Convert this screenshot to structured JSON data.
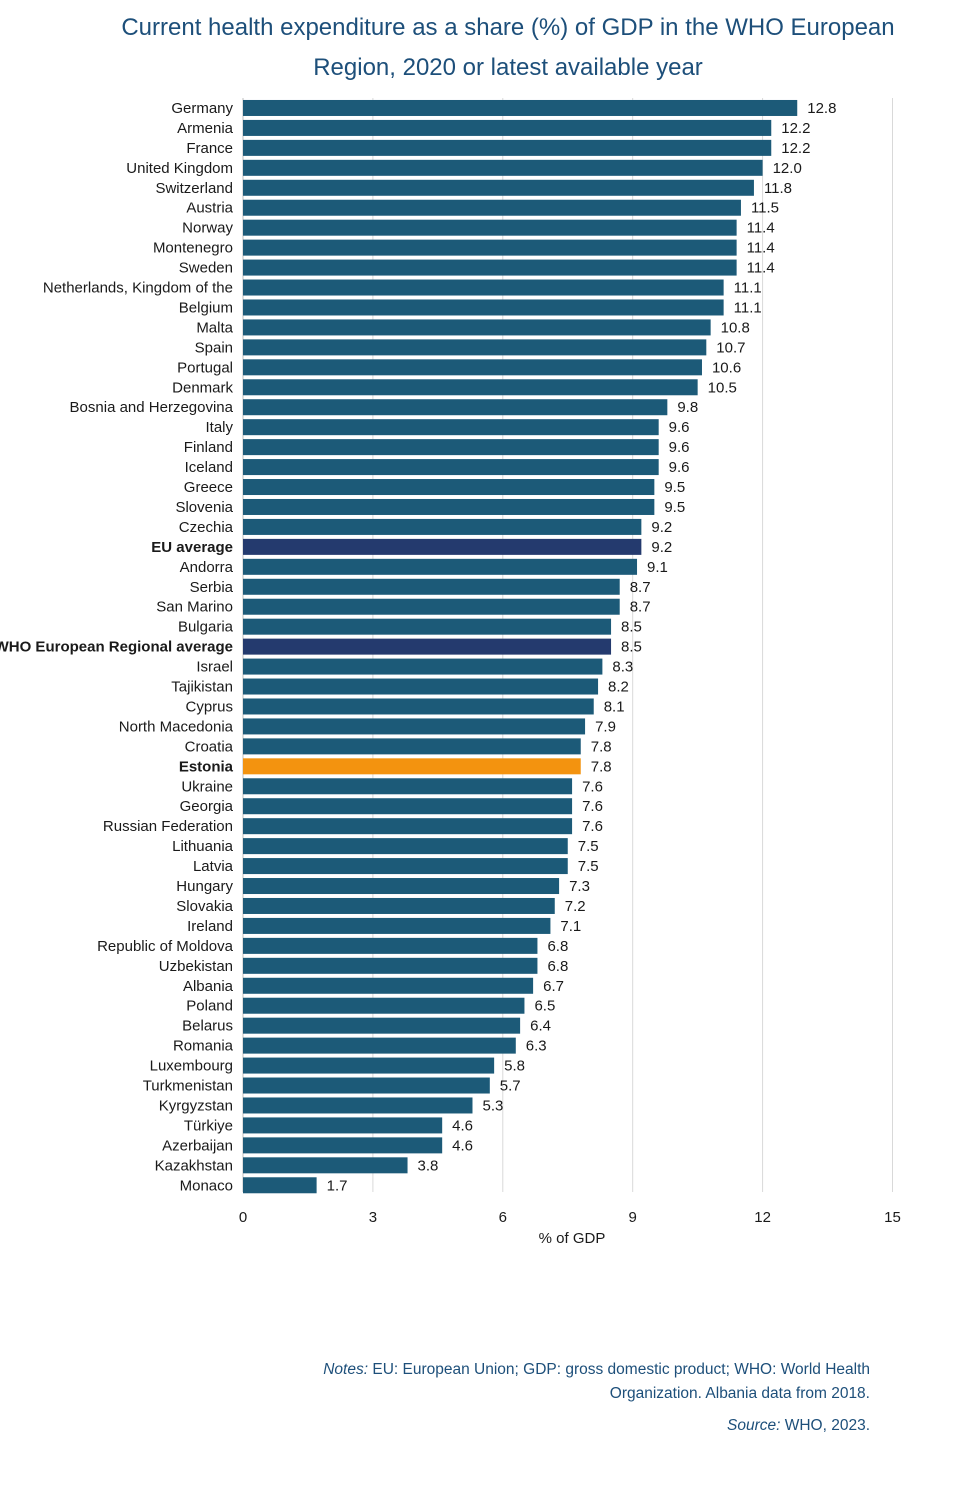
{
  "title_line1": "Current health expenditure as a share (%) of GDP in the WHO European",
  "title_line2": "Region, 2020 or latest available year",
  "notes_label": "Notes:",
  "notes_text": "EU: European Union; GDP: gross domestic product; WHO: World Health Organization. Albania data from 2018.",
  "source_label": "Source:",
  "source_text": "WHO, 2023.",
  "colors": {
    "bar": "#1c5a78",
    "average": "#243a6e",
    "highlight": "#f3930f",
    "grid": "#d9d9d9"
  },
  "chart_data": {
    "type": "bar",
    "orientation": "horizontal",
    "title": "Current health expenditure as a share (%) of GDP in the WHO European Region, 2020 or latest available year",
    "xlabel": "% of GDP",
    "ylabel": "",
    "xlim": [
      0,
      15
    ],
    "xticks": [
      0,
      3,
      6,
      9,
      12,
      15
    ],
    "grid": "vertical",
    "categories": [
      "Germany",
      "Armenia",
      "France",
      "United Kingdom",
      "Switzerland",
      "Austria",
      "Norway",
      "Montenegro",
      "Sweden",
      "Netherlands, Kingdom of the",
      "Belgium",
      "Malta",
      "Spain",
      "Portugal",
      "Denmark",
      "Bosnia and Herzegovina",
      "Italy",
      "Finland",
      "Iceland",
      "Greece",
      "Slovenia",
      "Czechia",
      "EU average",
      "Andorra",
      "Serbia",
      "San Marino",
      "Bulgaria",
      "WHO European Regional average",
      "Israel",
      "Tajikistan",
      "Cyprus",
      "North Macedonia",
      "Croatia",
      "Estonia",
      "Ukraine",
      "Georgia",
      "Russian Federation",
      "Lithuania",
      "Latvia",
      "Hungary",
      "Slovakia",
      "Ireland",
      "Republic of Moldova",
      "Uzbekistan",
      "Albania",
      "Poland",
      "Belarus",
      "Romania",
      "Luxembourg",
      "Turkmenistan",
      "Kyrgyzstan",
      "Türkiye",
      "Azerbaijan",
      "Kazakhstan",
      "Monaco"
    ],
    "values": [
      12.8,
      12.2,
      12.2,
      12.0,
      11.8,
      11.5,
      11.4,
      11.4,
      11.4,
      11.1,
      11.1,
      10.8,
      10.7,
      10.6,
      10.5,
      9.8,
      9.6,
      9.6,
      9.6,
      9.5,
      9.5,
      9.2,
      9.2,
      9.1,
      8.7,
      8.7,
      8.5,
      8.5,
      8.3,
      8.2,
      8.1,
      7.9,
      7.8,
      7.8,
      7.6,
      7.6,
      7.6,
      7.5,
      7.5,
      7.3,
      7.2,
      7.1,
      6.8,
      6.8,
      6.7,
      6.5,
      6.4,
      6.3,
      5.8,
      5.7,
      5.3,
      4.6,
      4.6,
      3.8,
      1.7
    ],
    "labels": [
      "12.8",
      "12.2",
      "12.2",
      "12.0",
      "11.8",
      "11.5",
      "11.4",
      "11.4",
      "11.4",
      "11.1",
      "11.1",
      "10.8",
      "10.7",
      "10.6",
      "10.5",
      "9.8",
      "9.6",
      "9.6",
      "9.6",
      "9.5",
      "9.5",
      "9.2",
      "9.2",
      "9.1",
      "8.7",
      "8.7",
      "8.5",
      "8.5",
      "8.3",
      "8.2",
      "8.1",
      "7.9",
      "7.8",
      "7.8",
      "7.6",
      "7.6",
      "7.6",
      "7.5",
      "7.5",
      "7.3",
      "7.2",
      "7.1",
      "6.8",
      "6.8",
      "6.7",
      "6.5",
      "6.4",
      "6.3",
      "5.8",
      "5.7",
      "5.3",
      "4.6",
      "4.6",
      "3.8",
      "1.7"
    ],
    "average_categories": [
      "EU average",
      "WHO European Regional average"
    ],
    "highlight_category": "Estonia"
  }
}
